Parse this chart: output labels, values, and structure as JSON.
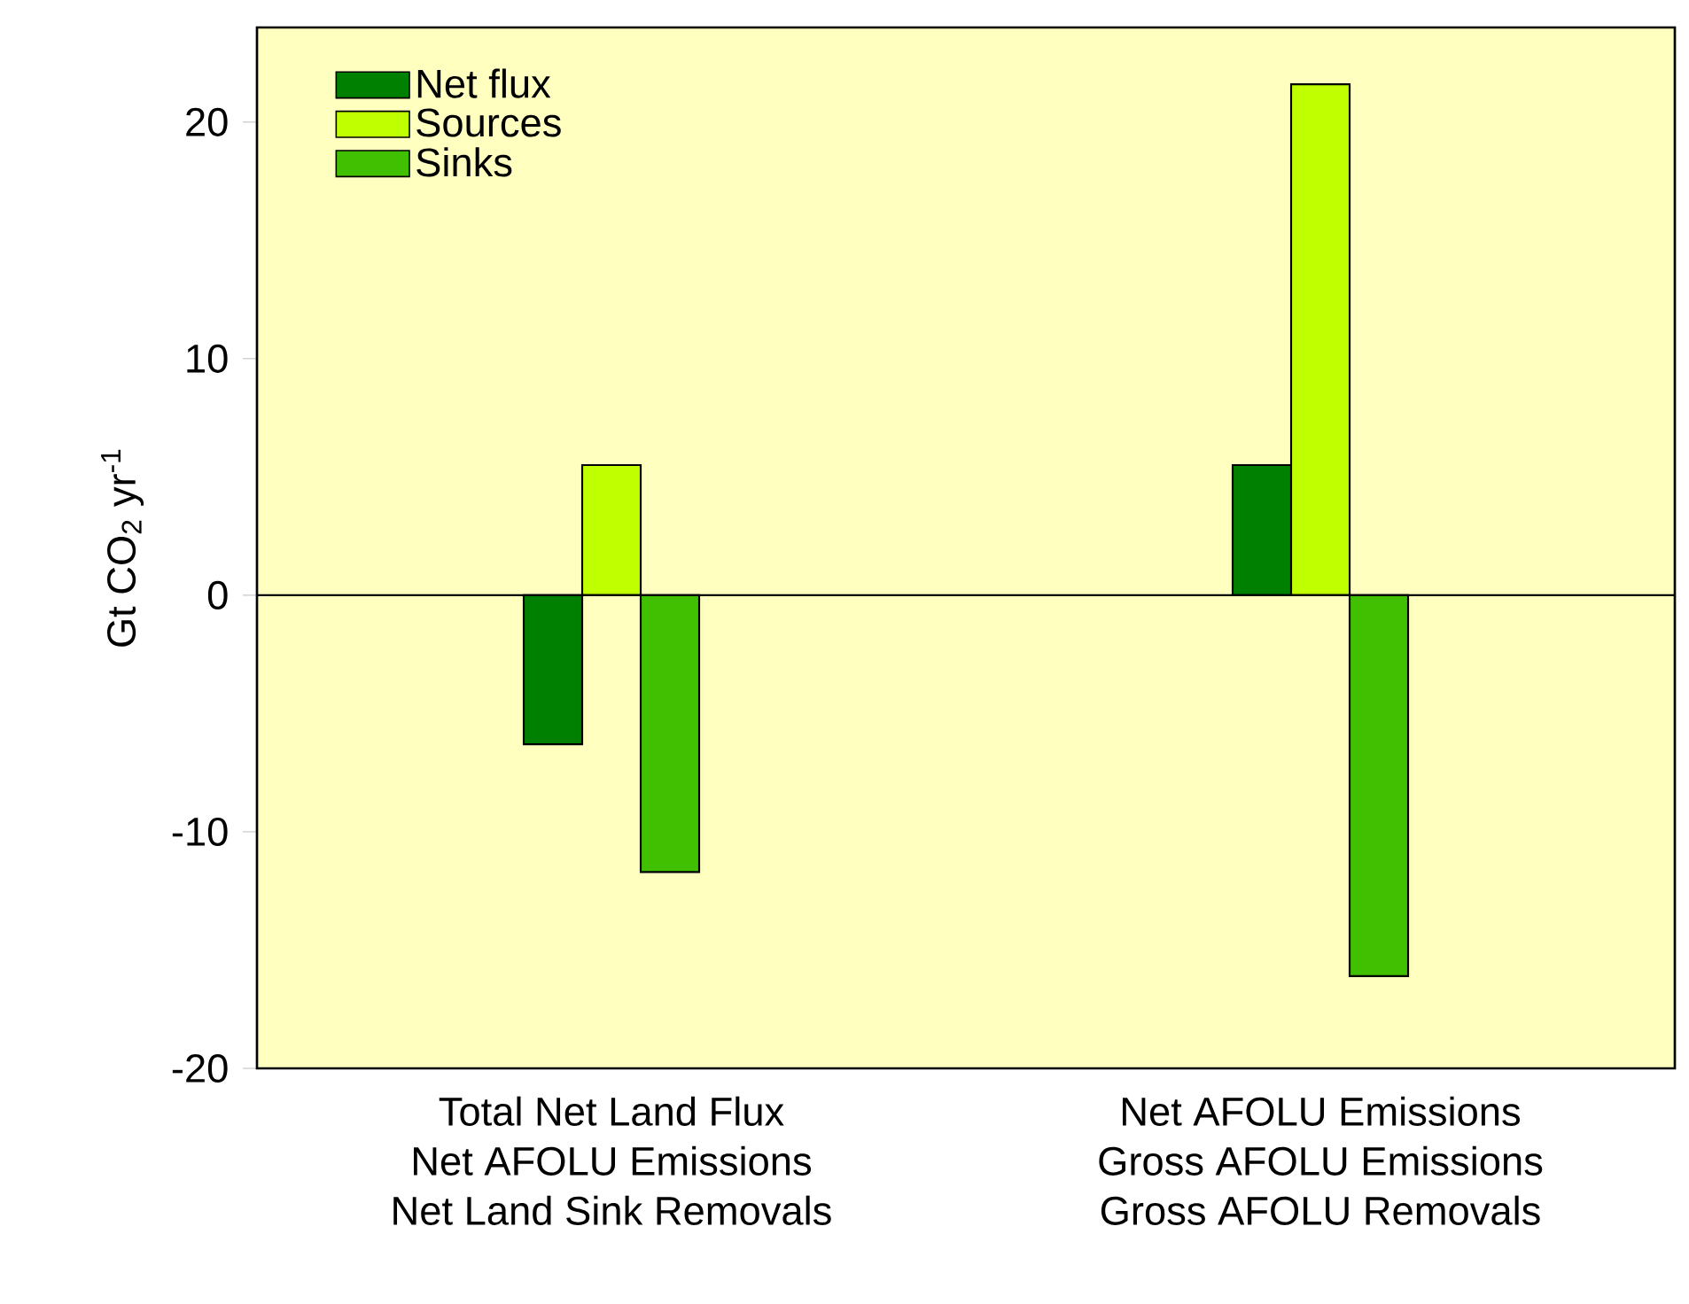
{
  "chart_data": {
    "type": "bar",
    "ylabel": "Gt CO$_{2}$ yr$^{-1}$",
    "categories": [
      "Total Net Land Flux\nNet AFOLU Emissions\nNet Land Sink Removals",
      "Net AFOLU Emissions\nGross AFOLU Emissions\nGross AFOLU Removals"
    ],
    "series": [
      {
        "name": "Net flux",
        "color": "#008000",
        "values": [
          -6.3,
          5.5
        ]
      },
      {
        "name": "Sources",
        "color": "#c0ff00",
        "values": [
          5.5,
          21.6
        ]
      },
      {
        "name": "Sinks",
        "color": "#40c000",
        "values": [
          -11.7,
          -16.1
        ]
      }
    ],
    "ylim": [
      -20,
      24
    ],
    "yticks": [
      -20,
      -10,
      0,
      10,
      20
    ],
    "grid": false,
    "legend": "top left",
    "ref_lines": [
      {
        "axis": "y",
        "value": 0
      }
    ]
  }
}
